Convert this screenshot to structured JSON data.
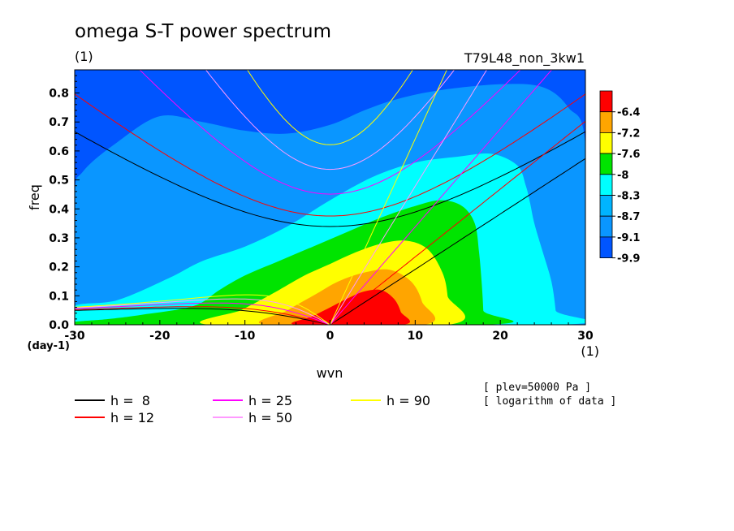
{
  "chart_data": {
    "type": "heatmap",
    "title": "omega S-T power spectrum",
    "subtitle_left": "(1)",
    "subtitle_right": "T79L48_non_3kw1",
    "xlabel": "wvn",
    "ylabel": "freq",
    "x_unit_label": "(1)",
    "y_unit_label": "(day-1)",
    "xlim": [
      -30,
      30
    ],
    "ylim": [
      0,
      0.88
    ],
    "x_ticks": [
      -30,
      -20,
      -10,
      0,
      10,
      20,
      30
    ],
    "y_ticks": [
      0.0,
      0.1,
      0.2,
      0.3,
      0.4,
      0.5,
      0.6,
      0.7,
      0.8
    ],
    "colorbar_levels": [
      "-6.4",
      "-7.2",
      "-7.6",
      "-8",
      "-8.3",
      "-8.7",
      "-9.1",
      "-9.9"
    ],
    "colorbar_colors": [
      "#ff0000",
      "#ffa500",
      "#ffff00",
      "#00e400",
      "#00ffff",
      "#00b4ff",
      "#0a96ff",
      "#0055ff"
    ],
    "contour_regions": [
      {
        "level": "-9.1",
        "color": "#0a96ff",
        "points": [
          [
            -30,
            0.44
          ],
          [
            -30,
            0
          ],
          [
            30,
            0
          ],
          [
            30,
            0.62
          ],
          [
            28,
            0.75
          ],
          [
            25,
            0.82
          ],
          [
            20,
            0.83
          ],
          [
            13,
            0.81
          ],
          [
            8,
            0.78
          ],
          [
            4,
            0.74
          ],
          [
            0,
            0.69
          ],
          [
            -5,
            0.66
          ],
          [
            -10,
            0.67
          ],
          [
            -15,
            0.7
          ],
          [
            -20,
            0.72
          ],
          [
            -25,
            0.63
          ],
          [
            -29,
            0.53
          ]
        ]
      },
      {
        "level": "-8.7",
        "color": "#00ffff",
        "points": [
          [
            -30,
            0.065
          ],
          [
            -25,
            0.085
          ],
          [
            -19,
            0.16
          ],
          [
            -15,
            0.22
          ],
          [
            -10,
            0.27
          ],
          [
            -5,
            0.34
          ],
          [
            0,
            0.43
          ],
          [
            5,
            0.51
          ],
          [
            10,
            0.56
          ],
          [
            15,
            0.58
          ],
          [
            19,
            0.59
          ],
          [
            22,
            0.55
          ],
          [
            23,
            0.48
          ],
          [
            23.5,
            0.42
          ],
          [
            24,
            0.35
          ],
          [
            25,
            0.25
          ],
          [
            26,
            0.15
          ],
          [
            26.5,
            0.05
          ],
          [
            26.5,
            0
          ],
          [
            -30,
            0
          ]
        ]
      },
      {
        "level": "-8.3",
        "color": "#00e400",
        "points": [
          [
            -30,
            0.01
          ],
          [
            -26,
            0.02
          ],
          [
            -22,
            0.035
          ],
          [
            -16,
            0.065
          ],
          [
            -13,
            0.12
          ],
          [
            -10,
            0.17
          ],
          [
            -6,
            0.22
          ],
          [
            -2,
            0.27
          ],
          [
            2,
            0.32
          ],
          [
            6,
            0.37
          ],
          [
            10,
            0.41
          ],
          [
            13,
            0.43
          ],
          [
            15.5,
            0.41
          ],
          [
            17,
            0.35
          ],
          [
            17.5,
            0.25
          ],
          [
            17.8,
            0.15
          ],
          [
            18,
            0.05
          ],
          [
            18,
            0
          ],
          [
            -30,
            0
          ]
        ]
      },
      {
        "level": "-8",
        "color": "#ffff00",
        "points": [
          [
            -14,
            0
          ],
          [
            -10.5,
            0.05
          ],
          [
            -8.5,
            0.08
          ],
          [
            -6,
            0.12
          ],
          [
            -3,
            0.17
          ],
          [
            0,
            0.21
          ],
          [
            3,
            0.25
          ],
          [
            6,
            0.28
          ],
          [
            9,
            0.29
          ],
          [
            11.5,
            0.26
          ],
          [
            13.2,
            0.18
          ],
          [
            13.8,
            0.1
          ],
          [
            13.8,
            0
          ]
        ]
      },
      {
        "level": "-7.6",
        "color": "#ffa500",
        "points": [
          [
            -7.5,
            0
          ],
          [
            -5,
            0.05
          ],
          [
            -2,
            0.1
          ],
          [
            1,
            0.15
          ],
          [
            4,
            0.18
          ],
          [
            7,
            0.19
          ],
          [
            9.5,
            0.15
          ],
          [
            10.8,
            0.08
          ],
          [
            11,
            0
          ]
        ]
      },
      {
        "level": "-7.2",
        "color": "#ff0000",
        "points": [
          [
            -4,
            0
          ],
          [
            -2,
            0.03
          ],
          [
            0,
            0.06
          ],
          [
            2,
            0.09
          ],
          [
            4,
            0.115
          ],
          [
            6,
            0.12
          ],
          [
            7.5,
            0.09
          ],
          [
            8.3,
            0.045
          ],
          [
            8.5,
            0
          ]
        ]
      }
    ],
    "dispersion_curves": [
      {
        "name": "h =  8",
        "color": "#000000"
      },
      {
        "name": "h = 12",
        "color": "#ff0000"
      },
      {
        "name": "h = 25",
        "color": "#ff00ff"
      },
      {
        "name": "h = 50",
        "color": "#ff9aff"
      },
      {
        "name": "h = 90",
        "color": "#ffff00"
      }
    ],
    "grid": false,
    "legend_placement": "bottom",
    "annotations": [
      "[ plev=50000 Pa ]",
      "[ logarithm of data ]"
    ]
  }
}
